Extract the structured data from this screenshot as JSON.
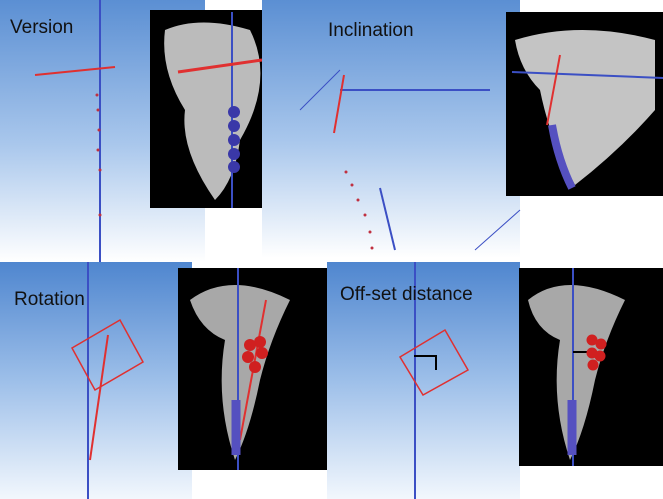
{
  "panels": [
    {
      "label": "Version"
    },
    {
      "label": "Inclination"
    },
    {
      "label": "Rotation"
    },
    {
      "label": "Off-set distance"
    }
  ]
}
